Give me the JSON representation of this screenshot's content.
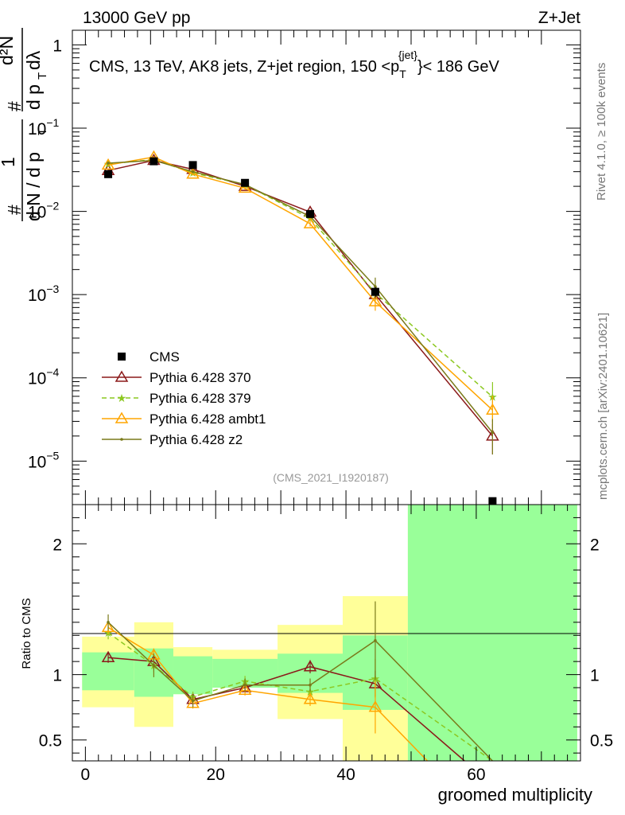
{
  "header": {
    "energy_label": "13000 GeV pp",
    "process_label": "Z+Jet"
  },
  "side_labels": {
    "rivet": "Rivet 4.1.0, ≥ 100k events",
    "mcplots": "mcplots.cern.ch [arXiv:2401.10621]"
  },
  "colors": {
    "cms": "#000000",
    "p370": "#8b1a1a",
    "p379": "#8cc821",
    "ambt1": "#ffa500",
    "z2": "#7a7a1a",
    "band_inner": "#99ff99",
    "band_outer": "#ffff99"
  },
  "chart_data": [
    {
      "type": "line",
      "title": "CMS, 13 TeV, AK8 jets, Z+jet region, 150 <p_T^{jet}< 186 GeV",
      "title_parts": {
        "prefix": "CMS, 13 TeV, AK8 jets, Z+jet region, 150 <p",
        "sub": "T",
        "sup": "{jet}",
        "suffix": "}< 186 GeV"
      },
      "ylabel": "1/N dN/dp_T d²N/dp_T dλ",
      "ylabel_parts": {
        "hash": "#",
        "one": "1",
        "dn": "d N / d p",
        "t": "T",
        "d2n": "d²N",
        "dpt": "d p",
        "dlambda": "dλ"
      },
      "yscale": "log",
      "ylim": [
        3e-06,
        1.5
      ],
      "xlim": [
        -2,
        76
      ],
      "y_ticks": [
        {
          "value": 1,
          "mant": "1",
          "exp": ""
        },
        {
          "value": 0.1,
          "mant": "10",
          "exp": "−1"
        },
        {
          "value": 0.01,
          "mant": "10",
          "exp": "−2"
        },
        {
          "value": 0.001,
          "mant": "10",
          "exp": "−3"
        },
        {
          "value": 0.0001,
          "mant": "10",
          "exp": "−4"
        },
        {
          "value": 1e-05,
          "mant": "10",
          "exp": "−5"
        }
      ],
      "watermark": "(CMS_2021_I1920187)",
      "legend_position": "bottom-left",
      "series": [
        {
          "name": "CMS",
          "key": "cms",
          "marker": "square",
          "x": [
            3.5,
            10.5,
            16.5,
            24.5,
            34.5,
            44.5,
            62.5
          ],
          "y": [
            0.028,
            0.04,
            0.036,
            0.022,
            0.0093,
            0.00108,
            3.3e-06
          ],
          "err": [
            0.002,
            0.002,
            0.002,
            0.0015,
            0.0008,
            0.00015,
            0
          ]
        },
        {
          "name": "Pythia 6.428 370",
          "key": "p370",
          "marker": "open-triangle",
          "dash": "",
          "x": [
            3.5,
            10.5,
            16.5,
            24.5,
            34.5,
            44.5,
            62.5
          ],
          "y": [
            0.031,
            0.041,
            0.032,
            0.02,
            0.0098,
            0.001,
            2e-05
          ],
          "err": [
            0.001,
            0.001,
            0.001,
            0.0008,
            0.0005,
            0.00018,
            8e-06
          ]
        },
        {
          "name": "Pythia 6.428 379",
          "key": "p379",
          "marker": "star",
          "dash": "6,4",
          "x": [
            3.5,
            10.5,
            16.5,
            24.5,
            34.5,
            44.5,
            62.5
          ],
          "y": [
            0.037,
            0.042,
            0.029,
            0.021,
            0.0082,
            0.00105,
            5.9e-05
          ],
          "err": [
            0.001,
            0.001,
            0.001,
            0.0008,
            0.0005,
            0.0002,
            3e-05
          ]
        },
        {
          "name": "Pythia 6.428 ambt1",
          "key": "ambt1",
          "marker": "open-triangle",
          "dash": "",
          "x": [
            3.5,
            10.5,
            16.5,
            24.5,
            34.5,
            44.5,
            62.5
          ],
          "y": [
            0.036,
            0.045,
            0.028,
            0.019,
            0.0071,
            0.00082,
            4.1e-05
          ],
          "err": [
            0.001,
            0.001,
            0.001,
            0.0008,
            0.0005,
            0.00018,
            2e-05
          ]
        },
        {
          "name": "Pythia 6.428 z2",
          "key": "z2",
          "marker": "dot",
          "dash": "",
          "x": [
            3.5,
            10.5,
            16.5,
            24.5,
            34.5,
            44.5,
            62.5
          ],
          "y": [
            0.038,
            0.041,
            0.03,
            0.021,
            0.0087,
            0.00125,
            2.2e-05
          ],
          "err": [
            0.001,
            0.001,
            0.001,
            0.0008,
            0.0005,
            0.00035,
            1e-05
          ]
        }
      ]
    },
    {
      "type": "line",
      "title": "Ratio to CMS",
      "xlabel": "groomed multiplicity",
      "ylabel": "Ratio to CMS",
      "ylim": [
        0.34,
        2.3
      ],
      "xlim": [
        -2,
        76
      ],
      "x_ticks": [
        0,
        20,
        40,
        60
      ],
      "y_ticks": [
        {
          "value": 0.5,
          "label": "0.5"
        },
        {
          "value": 1,
          "label": "1"
        },
        {
          "value": 2,
          "label": "2"
        }
      ],
      "bands": [
        {
          "x0": -0.5,
          "x1": 7.5,
          "inner": [
            0.88,
            1.17
          ],
          "outer": [
            0.75,
            1.29
          ]
        },
        {
          "x0": 7.5,
          "x1": 13.5,
          "inner": [
            0.83,
            1.2
          ],
          "outer": [
            0.6,
            1.4
          ]
        },
        {
          "x0": 13.5,
          "x1": 19.5,
          "inner": [
            0.85,
            1.14
          ],
          "outer": [
            0.85,
            1.21
          ]
        },
        {
          "x0": 19.5,
          "x1": 29.5,
          "inner": [
            0.9,
            1.12
          ],
          "outer": [
            0.9,
            1.19
          ]
        },
        {
          "x0": 29.5,
          "x1": 39.5,
          "inner": [
            0.86,
            1.16
          ],
          "outer": [
            0.66,
            1.38
          ]
        },
        {
          "x0": 39.5,
          "x1": 49.5,
          "inner": [
            0.73,
            1.3
          ],
          "outer": [
            0.34,
            1.6
          ]
        },
        {
          "x0": 49.5,
          "x1": 75.5,
          "inner": [
            0.34,
            2.3
          ],
          "outer": [
            0.34,
            2.3
          ]
        }
      ],
      "series": [
        {
          "name": "Pythia 6.428 370",
          "key": "p370",
          "marker": "open-triangle",
          "dash": "",
          "x": [
            3.5,
            10.5,
            16.5,
            24.5,
            34.5,
            44.5,
            58.2
          ],
          "y": [
            1.13,
            1.1,
            0.81,
            0.9,
            1.06,
            0.93,
            0.34
          ],
          "err": [
            0.04,
            0.04,
            0.04,
            0.04,
            0.05,
            0.1,
            0
          ]
        },
        {
          "name": "Pythia 6.428 379",
          "key": "p379",
          "marker": "star",
          "dash": "6,4",
          "x": [
            3.5,
            10.5,
            16.5,
            24.5,
            34.5,
            44.5,
            62.5
          ],
          "y": [
            1.32,
            1.07,
            0.83,
            0.95,
            0.87,
            0.97,
            0.34
          ],
          "err": [
            0.05,
            0.05,
            0.04,
            0.04,
            0.05,
            0.15,
            0
          ]
        },
        {
          "name": "Pythia 6.428 ambt1",
          "key": "ambt1",
          "marker": "open-triangle",
          "dash": "",
          "x": [
            3.5,
            10.5,
            16.5,
            24.5,
            34.5,
            44.5,
            52.5
          ],
          "y": [
            1.36,
            1.15,
            0.78,
            0.88,
            0.81,
            0.75,
            0.34
          ],
          "err": [
            0.05,
            0.05,
            0.04,
            0.04,
            0.05,
            0.2,
            0
          ]
        },
        {
          "name": "Pythia 6.428 z2",
          "key": "z2",
          "marker": "dot",
          "dash": "",
          "x": [
            3.5,
            10.5,
            16.5,
            24.5,
            34.5,
            44.5,
            62.5
          ],
          "y": [
            1.4,
            1.07,
            0.8,
            0.92,
            0.92,
            1.26,
            0.34
          ],
          "err": [
            0.06,
            0.09,
            0.05,
            0.05,
            0.05,
            0.3,
            0
          ]
        }
      ]
    }
  ]
}
